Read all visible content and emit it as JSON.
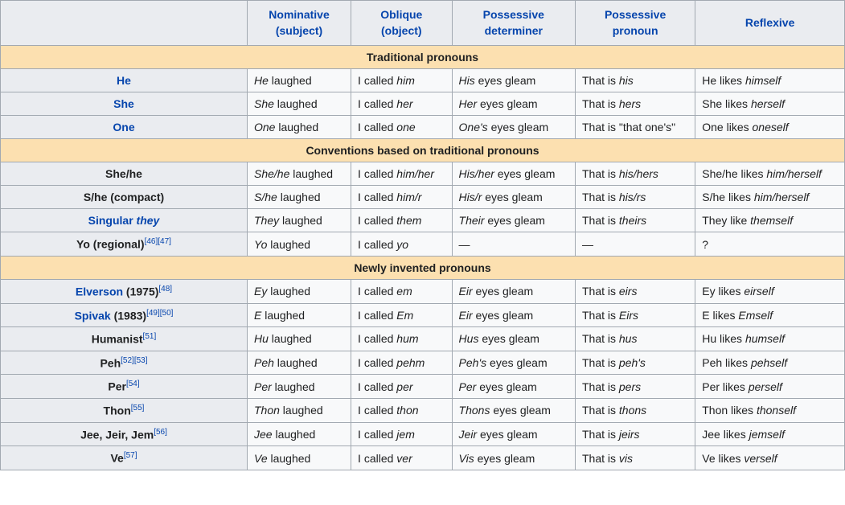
{
  "colors": {
    "link": "#0645ad",
    "border": "#a2a9b1",
    "header_bg": "#eaecf0",
    "section_bg": "#fce0b0",
    "cell_bg": "#f8f9fa",
    "text": "#202122"
  },
  "columns": [
    {
      "line1": "Nominative",
      "line2": "(subject)"
    },
    {
      "line1": "Oblique",
      "line2": "(object)"
    },
    {
      "line1": "Possessive",
      "line2": "determiner"
    },
    {
      "line1": "Possessive",
      "line2": "pronoun"
    },
    {
      "line1": "Reflexive",
      "line2": ""
    }
  ],
  "sections": [
    {
      "title": "Traditional pronouns",
      "rows": [
        {
          "label_parts": [
            {
              "t": "He",
              "link": true
            }
          ],
          "cells": [
            [
              {
                "t": "He",
                "i": true
              },
              {
                "t": " laughed"
              }
            ],
            [
              {
                "t": "I called "
              },
              {
                "t": "him",
                "i": true
              }
            ],
            [
              {
                "t": "His",
                "i": true
              },
              {
                "t": " eyes gleam"
              }
            ],
            [
              {
                "t": "That is "
              },
              {
                "t": "his",
                "i": true
              }
            ],
            [
              {
                "t": "He likes "
              },
              {
                "t": "himself",
                "i": true
              }
            ]
          ]
        },
        {
          "label_parts": [
            {
              "t": "She",
              "link": true
            }
          ],
          "cells": [
            [
              {
                "t": "She",
                "i": true
              },
              {
                "t": " laughed"
              }
            ],
            [
              {
                "t": "I called "
              },
              {
                "t": "her",
                "i": true
              }
            ],
            [
              {
                "t": "Her",
                "i": true
              },
              {
                "t": " eyes gleam"
              }
            ],
            [
              {
                "t": "That is "
              },
              {
                "t": "hers",
                "i": true
              }
            ],
            [
              {
                "t": "She likes "
              },
              {
                "t": "herself",
                "i": true
              }
            ]
          ]
        },
        {
          "label_parts": [
            {
              "t": "One",
              "link": true
            }
          ],
          "cells": [
            [
              {
                "t": "One",
                "i": true
              },
              {
                "t": " laughed"
              }
            ],
            [
              {
                "t": "I called "
              },
              {
                "t": "one",
                "i": true
              }
            ],
            [
              {
                "t": "One's",
                "i": true
              },
              {
                "t": " eyes gleam"
              }
            ],
            [
              {
                "t": "That is \"that one's\""
              }
            ],
            [
              {
                "t": "One likes "
              },
              {
                "t": "oneself",
                "i": true
              }
            ]
          ]
        }
      ]
    },
    {
      "title": "Conventions based on traditional pronouns",
      "rows": [
        {
          "label_parts": [
            {
              "t": "She/he",
              "bold": true
            }
          ],
          "cells": [
            [
              {
                "t": "She/he",
                "i": true
              },
              {
                "t": " laughed"
              }
            ],
            [
              {
                "t": "I called "
              },
              {
                "t": "him/her",
                "i": true
              }
            ],
            [
              {
                "t": "His/her",
                "i": true
              },
              {
                "t": " eyes gleam"
              }
            ],
            [
              {
                "t": "That is "
              },
              {
                "t": "his/hers",
                "i": true
              }
            ],
            [
              {
                "t": "She/he likes "
              },
              {
                "t": "him/herself",
                "i": true
              }
            ]
          ]
        },
        {
          "label_parts": [
            {
              "t": "S/he (compact)",
              "bold": true
            }
          ],
          "cells": [
            [
              {
                "t": "S/he",
                "i": true
              },
              {
                "t": " laughed"
              }
            ],
            [
              {
                "t": "I called "
              },
              {
                "t": "him/r",
                "i": true
              }
            ],
            [
              {
                "t": "His/r",
                "i": true
              },
              {
                "t": " eyes gleam"
              }
            ],
            [
              {
                "t": "That is "
              },
              {
                "t": "his/rs",
                "i": true
              }
            ],
            [
              {
                "t": "S/he likes "
              },
              {
                "t": "him/herself",
                "i": true
              }
            ]
          ]
        },
        {
          "label_parts": [
            {
              "t": "Singular ",
              "link": true
            },
            {
              "t": "they",
              "link": true,
              "i": true
            }
          ],
          "cells": [
            [
              {
                "t": "They",
                "i": true
              },
              {
                "t": " laughed"
              }
            ],
            [
              {
                "t": "I called "
              },
              {
                "t": "them",
                "i": true
              }
            ],
            [
              {
                "t": "Their",
                "i": true
              },
              {
                "t": " eyes gleam"
              }
            ],
            [
              {
                "t": "That is "
              },
              {
                "t": "theirs",
                "i": true
              }
            ],
            [
              {
                "t": "They like "
              },
              {
                "t": "themself",
                "i": true
              }
            ]
          ]
        },
        {
          "label_parts": [
            {
              "t": "Yo (regional)",
              "bold": true
            }
          ],
          "refs": [
            "[46]",
            "[47]"
          ],
          "cells": [
            [
              {
                "t": "Yo",
                "i": true
              },
              {
                "t": " laughed"
              }
            ],
            [
              {
                "t": "I called "
              },
              {
                "t": "yo",
                "i": true
              }
            ],
            [
              {
                "t": "—"
              }
            ],
            [
              {
                "t": "—"
              }
            ],
            [
              {
                "t": "?"
              }
            ]
          ]
        }
      ]
    },
    {
      "title": "Newly invented pronouns",
      "rows": [
        {
          "label_parts": [
            {
              "t": "Elverson",
              "link": true
            },
            {
              "t": " (1975)",
              "bold": true
            }
          ],
          "refs": [
            "[48]"
          ],
          "cells": [
            [
              {
                "t": "Ey",
                "i": true
              },
              {
                "t": " laughed"
              }
            ],
            [
              {
                "t": "I called "
              },
              {
                "t": "em",
                "i": true
              }
            ],
            [
              {
                "t": "Eir",
                "i": true
              },
              {
                "t": " eyes gleam"
              }
            ],
            [
              {
                "t": "That is "
              },
              {
                "t": "eirs",
                "i": true
              }
            ],
            [
              {
                "t": "Ey likes "
              },
              {
                "t": "eirself",
                "i": true
              }
            ]
          ]
        },
        {
          "label_parts": [
            {
              "t": "Spivak",
              "link": true
            },
            {
              "t": " (1983)",
              "bold": true
            }
          ],
          "refs": [
            "[49]",
            "[50]"
          ],
          "cells": [
            [
              {
                "t": "E",
                "i": true
              },
              {
                "t": " laughed"
              }
            ],
            [
              {
                "t": "I called "
              },
              {
                "t": "Em",
                "i": true
              }
            ],
            [
              {
                "t": "Eir",
                "i": true
              },
              {
                "t": " eyes gleam"
              }
            ],
            [
              {
                "t": "That is "
              },
              {
                "t": "Eirs",
                "i": true
              }
            ],
            [
              {
                "t": "E likes "
              },
              {
                "t": "Emself",
                "i": true
              }
            ]
          ]
        },
        {
          "label_parts": [
            {
              "t": "Humanist",
              "bold": true
            }
          ],
          "refs": [
            "[51]"
          ],
          "cells": [
            [
              {
                "t": "Hu",
                "i": true
              },
              {
                "t": " laughed"
              }
            ],
            [
              {
                "t": "I called "
              },
              {
                "t": "hum",
                "i": true
              }
            ],
            [
              {
                "t": "Hus",
                "i": true
              },
              {
                "t": " eyes gleam"
              }
            ],
            [
              {
                "t": "That is "
              },
              {
                "t": "hus",
                "i": true
              }
            ],
            [
              {
                "t": "Hu likes "
              },
              {
                "t": "humself",
                "i": true
              }
            ]
          ]
        },
        {
          "label_parts": [
            {
              "t": "Peh",
              "bold": true
            }
          ],
          "refs": [
            "[52]",
            "[53]"
          ],
          "cells": [
            [
              {
                "t": "Peh",
                "i": true
              },
              {
                "t": " laughed"
              }
            ],
            [
              {
                "t": "I called "
              },
              {
                "t": "pehm",
                "i": true
              }
            ],
            [
              {
                "t": "Peh's",
                "i": true
              },
              {
                "t": " eyes gleam"
              }
            ],
            [
              {
                "t": "That is "
              },
              {
                "t": "peh's",
                "i": true
              }
            ],
            [
              {
                "t": "Peh likes "
              },
              {
                "t": "pehself",
                "i": true
              }
            ]
          ]
        },
        {
          "label_parts": [
            {
              "t": "Per",
              "bold": true
            }
          ],
          "refs": [
            "[54]"
          ],
          "cells": [
            [
              {
                "t": "Per",
                "i": true
              },
              {
                "t": " laughed"
              }
            ],
            [
              {
                "t": "I called "
              },
              {
                "t": "per",
                "i": true
              }
            ],
            [
              {
                "t": "Per",
                "i": true
              },
              {
                "t": " eyes gleam"
              }
            ],
            [
              {
                "t": "That is "
              },
              {
                "t": "pers",
                "i": true
              }
            ],
            [
              {
                "t": "Per likes "
              },
              {
                "t": "perself",
                "i": true
              }
            ]
          ]
        },
        {
          "label_parts": [
            {
              "t": "Thon",
              "bold": true
            }
          ],
          "refs": [
            "[55]"
          ],
          "cells": [
            [
              {
                "t": "Thon",
                "i": true
              },
              {
                "t": " laughed"
              }
            ],
            [
              {
                "t": "I called "
              },
              {
                "t": "thon",
                "i": true
              }
            ],
            [
              {
                "t": "Thons",
                "i": true
              },
              {
                "t": " eyes gleam"
              }
            ],
            [
              {
                "t": "That is "
              },
              {
                "t": "thons",
                "i": true
              }
            ],
            [
              {
                "t": "Thon likes "
              },
              {
                "t": "thonself",
                "i": true
              }
            ]
          ]
        },
        {
          "label_parts": [
            {
              "t": "Jee, Jeir, Jem",
              "bold": true
            }
          ],
          "refs": [
            "[56]"
          ],
          "cells": [
            [
              {
                "t": "Jee",
                "i": true
              },
              {
                "t": " laughed"
              }
            ],
            [
              {
                "t": "I called "
              },
              {
                "t": "jem",
                "i": true
              }
            ],
            [
              {
                "t": "Jeir",
                "i": true
              },
              {
                "t": " eyes gleam"
              }
            ],
            [
              {
                "t": "That is "
              },
              {
                "t": "jeirs",
                "i": true
              }
            ],
            [
              {
                "t": "Jee likes "
              },
              {
                "t": "jemself",
                "i": true
              }
            ]
          ]
        },
        {
          "label_parts": [
            {
              "t": "Ve",
              "bold": true
            }
          ],
          "refs": [
            "[57]"
          ],
          "cells": [
            [
              {
                "t": "Ve",
                "i": true
              },
              {
                "t": " laughed"
              }
            ],
            [
              {
                "t": "I called "
              },
              {
                "t": "ver",
                "i": true
              }
            ],
            [
              {
                "t": "Vis",
                "i": true
              },
              {
                "t": " eyes gleam"
              }
            ],
            [
              {
                "t": "That is "
              },
              {
                "t": "vis",
                "i": true
              }
            ],
            [
              {
                "t": "Ve likes "
              },
              {
                "t": "verself",
                "i": true
              }
            ]
          ]
        }
      ]
    }
  ]
}
